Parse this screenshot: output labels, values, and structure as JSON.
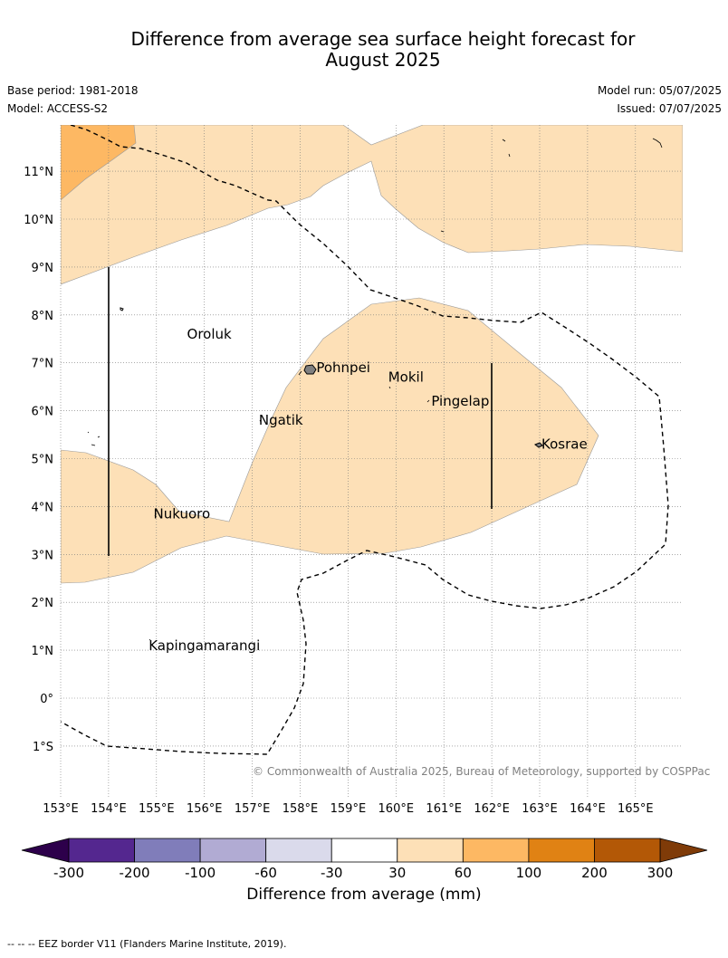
{
  "title_line1": "Difference from average sea surface height forecast for",
  "title_line2": "August 2025",
  "base_period": "Base period: 1981-2018",
  "model": "Model: ACCESS-S2",
  "model_run": "Model run: 05/07/2025",
  "issued": "Issued: 07/07/2025",
  "copyright": "© Commonwealth of Australia 2025, Bureau of Meteorology, supported by COSPPac",
  "colorbar_title": "Difference from average (mm)",
  "eez_note": "-- -- -- EEZ border V11 (Flanders Marine Institute, 2019).",
  "lon_ticks": [
    "153°E",
    "154°E",
    "155°E",
    "156°E",
    "157°E",
    "158°E",
    "159°E",
    "160°E",
    "161°E",
    "162°E",
    "163°E",
    "164°E",
    "165°E"
  ],
  "lat_ticks": [
    "11°N",
    "10°N",
    "9°N",
    "8°N",
    "7°N",
    "6°N",
    "5°N",
    "4°N",
    "3°N",
    "2°N",
    "1°N",
    "0°",
    "1°S"
  ],
  "places": [
    {
      "name": "Oroluk",
      "lon": 155.6,
      "lat": 7.6
    },
    {
      "name": "Pohnpei",
      "lon": 158.3,
      "lat": 6.9
    },
    {
      "name": "Mokil",
      "lon": 159.8,
      "lat": 6.7
    },
    {
      "name": "Pingelap",
      "lon": 160.7,
      "lat": 6.2
    },
    {
      "name": "Ngatik",
      "lon": 157.1,
      "lat": 5.8
    },
    {
      "name": "Kosrae",
      "lon": 163.0,
      "lat": 5.3
    },
    {
      "name": "Nukuoro",
      "lon": 154.9,
      "lat": 3.85
    },
    {
      "name": "Kapingamarangi",
      "lon": 154.8,
      "lat": 1.1
    }
  ],
  "colorbar": {
    "tick_labels": [
      "-300",
      "-200",
      "-100",
      "-60",
      "-30",
      "30",
      "60",
      "100",
      "200",
      "300"
    ],
    "colors": [
      "#54278f",
      "#807dba",
      "#b1abd3",
      "#dadaeb",
      "#ffffff",
      "#fde0b7",
      "#fdb863",
      "#e08214",
      "#b35806"
    ],
    "under_color": "#2d004b",
    "over_color": "#7f3b08"
  },
  "contour_colors": {
    "light": "#fde0b7",
    "medium": "#fdb863"
  }
}
